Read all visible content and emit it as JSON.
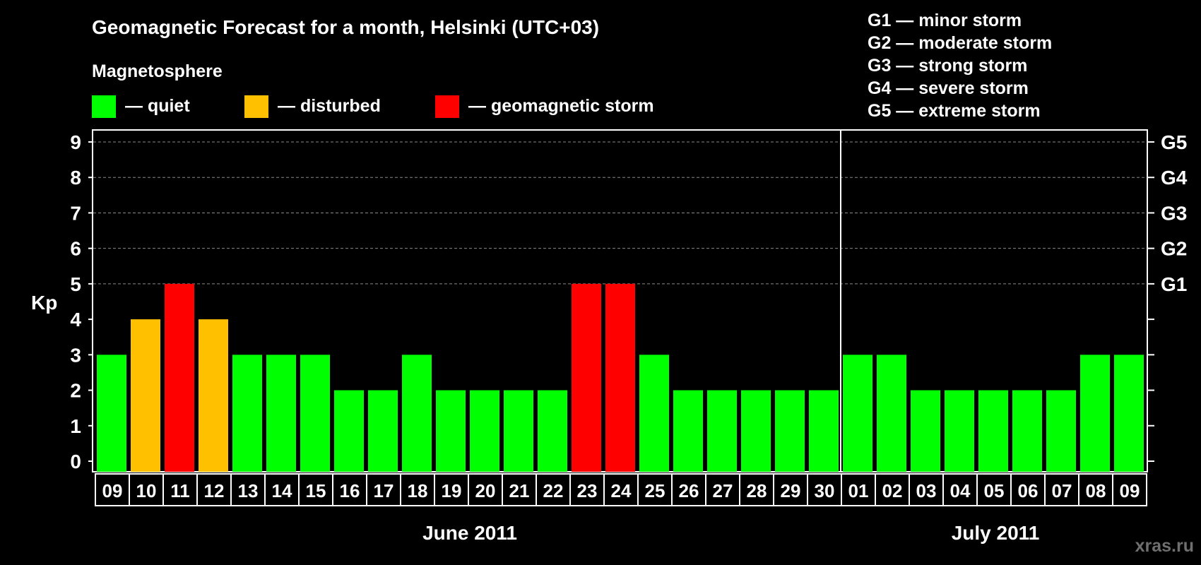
{
  "title": "Geomagnetic Forecast for a month, Helsinki (UTC+03)",
  "legend": {
    "heading": "Magnetosphere",
    "items": [
      {
        "key": "quiet",
        "label": "— quiet",
        "color": "#00ff00"
      },
      {
        "key": "disturbed",
        "label": "— disturbed",
        "color": "#ffc000"
      },
      {
        "key": "storm",
        "label": "— geomagnetic storm",
        "color": "#ff0000"
      }
    ]
  },
  "storm_scale": [
    "G1 — minor storm",
    "G2 — moderate storm",
    "G3 — strong storm",
    "G4 — severe storm",
    "G5 — extreme storm"
  ],
  "watermark": "xras.ru",
  "chart_data": {
    "type": "bar",
    "ylabel": "Kp",
    "ylim": [
      0,
      9
    ],
    "yticks": [
      "0",
      "1",
      "2",
      "3",
      "4",
      "5",
      "6",
      "7",
      "8",
      "9"
    ],
    "right_axis_labels": [
      {
        "kp": 5,
        "label": "G1"
      },
      {
        "kp": 6,
        "label": "G2"
      },
      {
        "kp": 7,
        "label": "G3"
      },
      {
        "kp": 8,
        "label": "G4"
      },
      {
        "kp": 9,
        "label": "G5"
      }
    ],
    "grid": true,
    "categories": [
      "09",
      "10",
      "11",
      "12",
      "13",
      "14",
      "15",
      "16",
      "17",
      "18",
      "19",
      "20",
      "21",
      "22",
      "23",
      "24",
      "25",
      "26",
      "27",
      "28",
      "29",
      "30",
      "01",
      "02",
      "03",
      "04",
      "05",
      "06",
      "07",
      "08",
      "09"
    ],
    "values": [
      3,
      4,
      5,
      4,
      3,
      3,
      3,
      2,
      2,
      3,
      2,
      2,
      2,
      2,
      5,
      5,
      3,
      2,
      2,
      2,
      2,
      2,
      3,
      3,
      2,
      2,
      2,
      2,
      2,
      3,
      3
    ],
    "status": [
      "quiet",
      "disturbed",
      "storm",
      "disturbed",
      "quiet",
      "quiet",
      "quiet",
      "quiet",
      "quiet",
      "quiet",
      "quiet",
      "quiet",
      "quiet",
      "quiet",
      "storm",
      "storm",
      "quiet",
      "quiet",
      "quiet",
      "quiet",
      "quiet",
      "quiet",
      "quiet",
      "quiet",
      "quiet",
      "quiet",
      "quiet",
      "quiet",
      "quiet",
      "quiet",
      "quiet"
    ],
    "months": [
      {
        "label": "June 2011",
        "start": 0,
        "end": 21
      },
      {
        "label": "July 2011",
        "start": 22,
        "end": 30
      }
    ]
  }
}
